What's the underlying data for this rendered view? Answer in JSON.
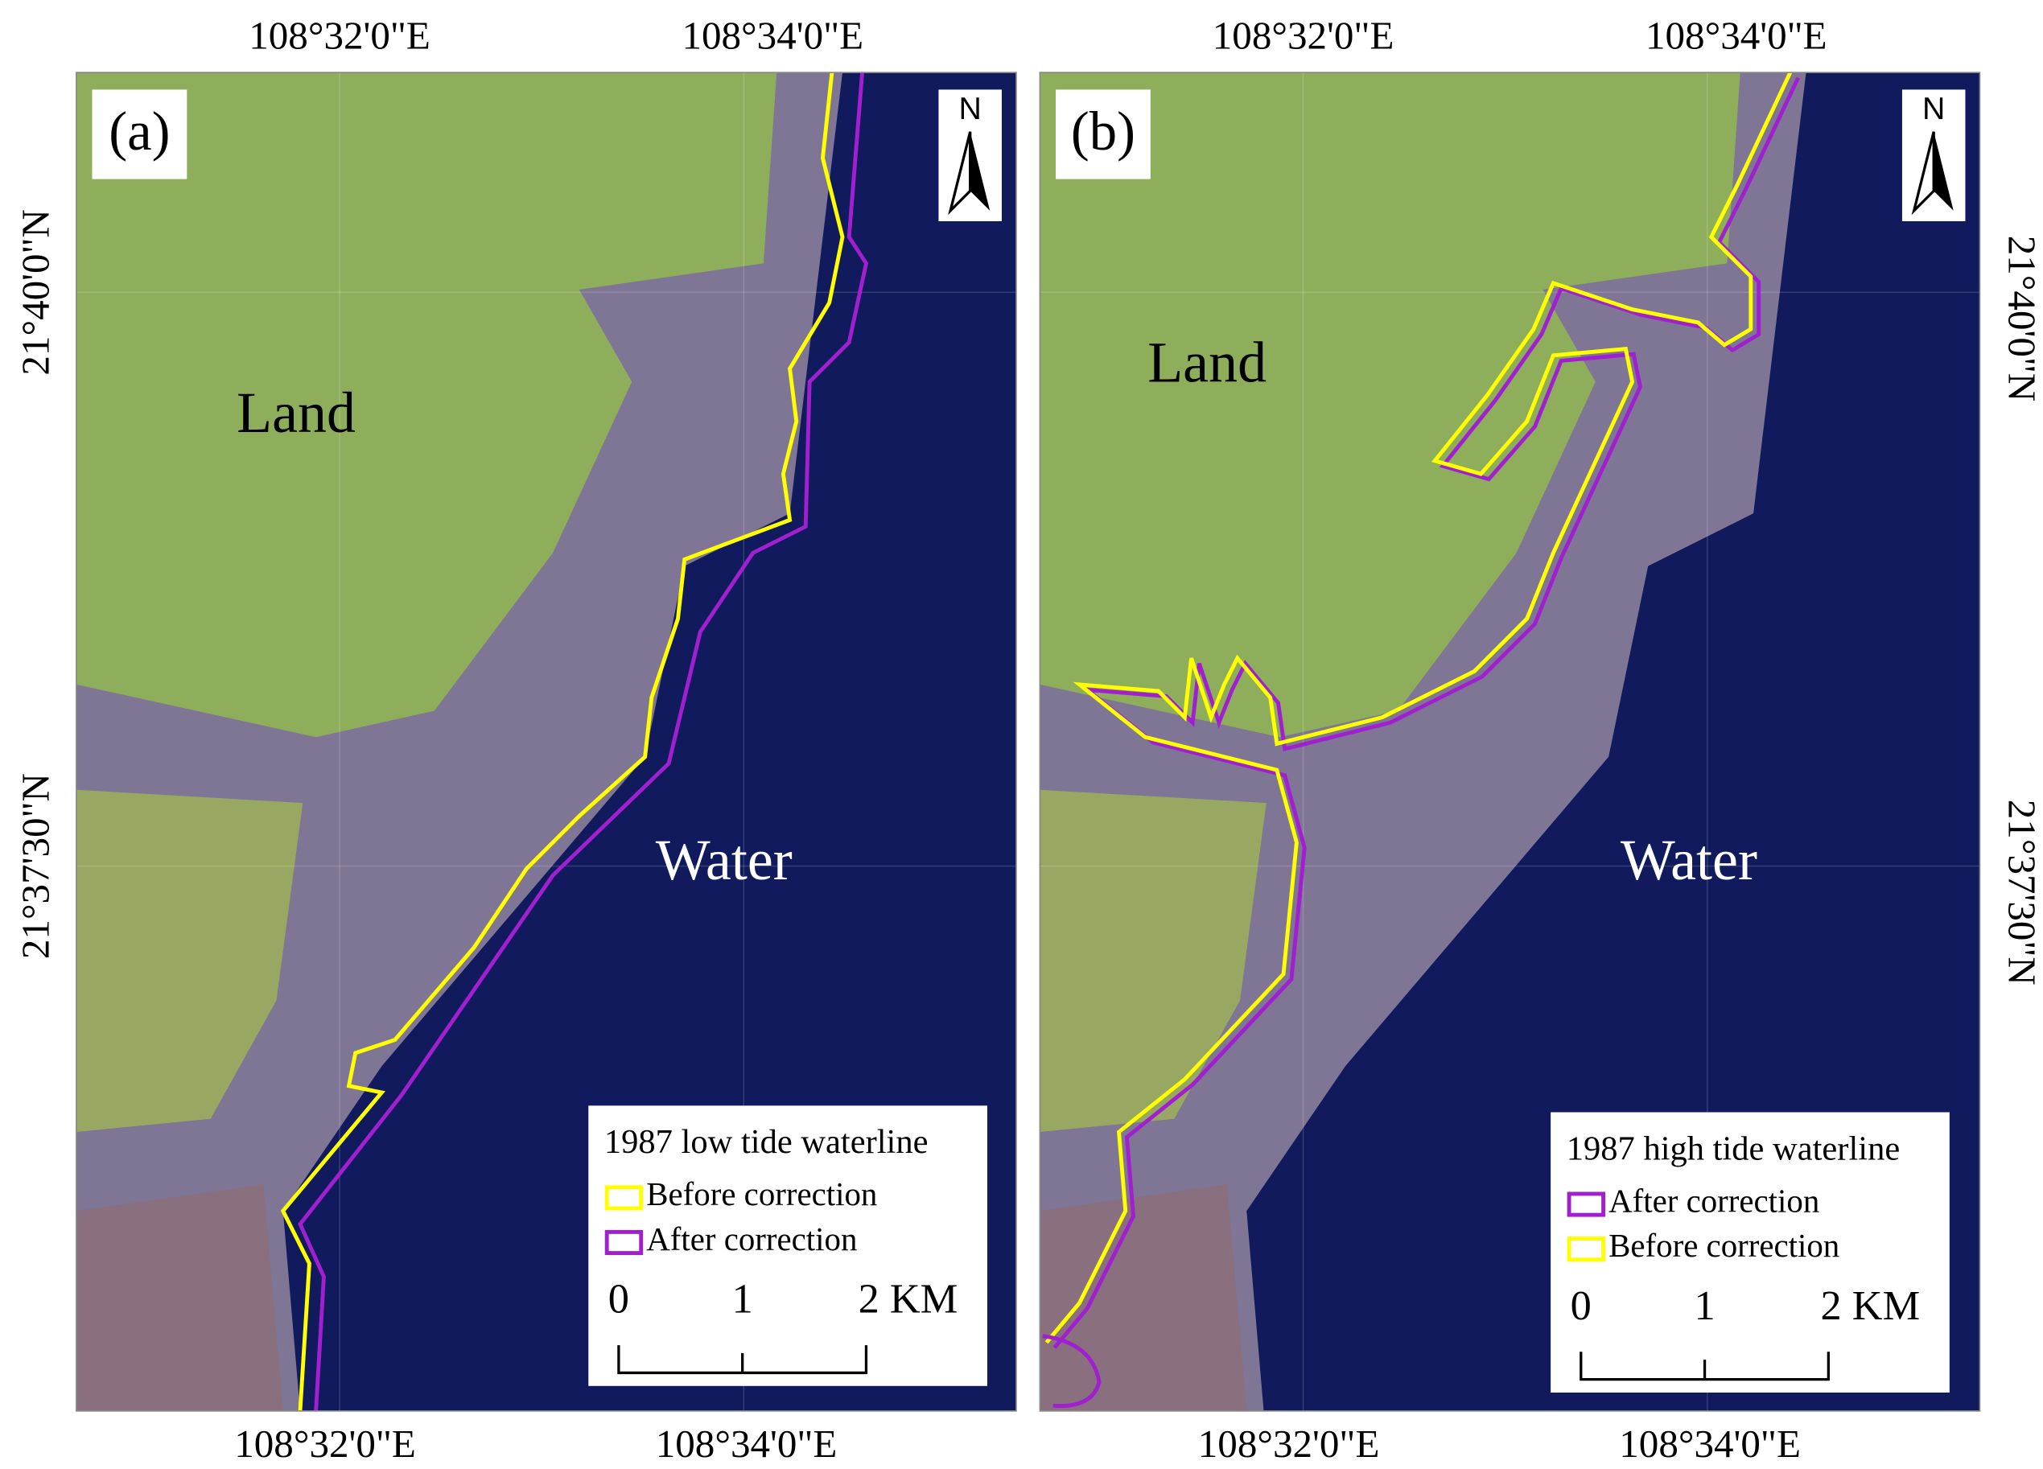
{
  "panels": [
    {
      "label": "(a)",
      "north": "N",
      "land": "Land",
      "water": "Water",
      "top_ticks": [
        "108°32'0\"E",
        "108°34'0\"E"
      ],
      "bottom_ticks": [
        "108°32'0\"E",
        "108°34'0\"E"
      ],
      "side_ticks": [
        "21°40'0\"N",
        "21°37'30\"N"
      ],
      "legend": {
        "title": "1987  low tide waterline",
        "items": [
          {
            "label": "Before correction",
            "color": "#ffff00"
          },
          {
            "label": "After correction",
            "color": "#a020d0"
          }
        ]
      },
      "scale": [
        "0",
        "1",
        "2 KM"
      ]
    },
    {
      "label": "(b)",
      "north": "N",
      "land": "Land",
      "water": "Water",
      "top_ticks": [
        "108°32'0\"E",
        "108°34'0\"E"
      ],
      "bottom_ticks": [
        "108°32'0\"E",
        "108°34'0\"E"
      ],
      "side_ticks": [
        "21°40'0\"N",
        "21°37'30\"N"
      ],
      "legend": {
        "title": "1987 high tide waterline",
        "items": [
          {
            "label": "After correction",
            "color": "#a020d0"
          },
          {
            "label": "Before correction",
            "color": "#ffff00"
          }
        ]
      },
      "scale": [
        "0",
        "1",
        "2 KM"
      ]
    }
  ]
}
